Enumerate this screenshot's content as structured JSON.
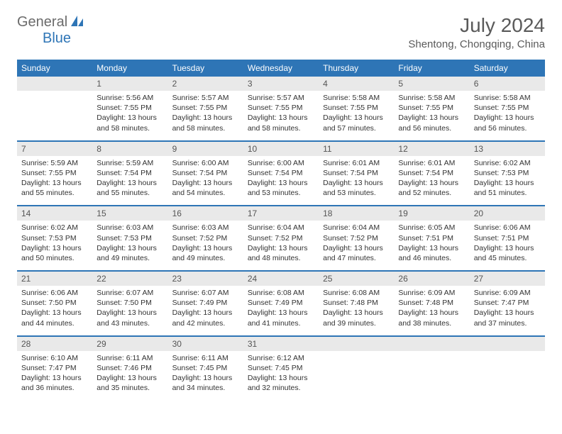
{
  "logo": {
    "part1": "General",
    "part2": "Blue"
  },
  "title": "July 2024",
  "location": "Shentong, Chongqing, China",
  "colors": {
    "header_bg": "#2e75b6",
    "header_text": "#ffffff",
    "daynum_bg": "#e9e9e9",
    "border": "#2e75b6",
    "body_text": "#333333",
    "muted_text": "#5a5a5a"
  },
  "day_headers": [
    "Sunday",
    "Monday",
    "Tuesday",
    "Wednesday",
    "Thursday",
    "Friday",
    "Saturday"
  ],
  "weeks": [
    {
      "nums": [
        "",
        "1",
        "2",
        "3",
        "4",
        "5",
        "6"
      ],
      "cells": [
        "",
        "Sunrise: 5:56 AM\nSunset: 7:55 PM\nDaylight: 13 hours and 58 minutes.",
        "Sunrise: 5:57 AM\nSunset: 7:55 PM\nDaylight: 13 hours and 58 minutes.",
        "Sunrise: 5:57 AM\nSunset: 7:55 PM\nDaylight: 13 hours and 58 minutes.",
        "Sunrise: 5:58 AM\nSunset: 7:55 PM\nDaylight: 13 hours and 57 minutes.",
        "Sunrise: 5:58 AM\nSunset: 7:55 PM\nDaylight: 13 hours and 56 minutes.",
        "Sunrise: 5:58 AM\nSunset: 7:55 PM\nDaylight: 13 hours and 56 minutes."
      ]
    },
    {
      "nums": [
        "7",
        "8",
        "9",
        "10",
        "11",
        "12",
        "13"
      ],
      "cells": [
        "Sunrise: 5:59 AM\nSunset: 7:55 PM\nDaylight: 13 hours and 55 minutes.",
        "Sunrise: 5:59 AM\nSunset: 7:54 PM\nDaylight: 13 hours and 55 minutes.",
        "Sunrise: 6:00 AM\nSunset: 7:54 PM\nDaylight: 13 hours and 54 minutes.",
        "Sunrise: 6:00 AM\nSunset: 7:54 PM\nDaylight: 13 hours and 53 minutes.",
        "Sunrise: 6:01 AM\nSunset: 7:54 PM\nDaylight: 13 hours and 53 minutes.",
        "Sunrise: 6:01 AM\nSunset: 7:54 PM\nDaylight: 13 hours and 52 minutes.",
        "Sunrise: 6:02 AM\nSunset: 7:53 PM\nDaylight: 13 hours and 51 minutes."
      ]
    },
    {
      "nums": [
        "14",
        "15",
        "16",
        "17",
        "18",
        "19",
        "20"
      ],
      "cells": [
        "Sunrise: 6:02 AM\nSunset: 7:53 PM\nDaylight: 13 hours and 50 minutes.",
        "Sunrise: 6:03 AM\nSunset: 7:53 PM\nDaylight: 13 hours and 49 minutes.",
        "Sunrise: 6:03 AM\nSunset: 7:52 PM\nDaylight: 13 hours and 49 minutes.",
        "Sunrise: 6:04 AM\nSunset: 7:52 PM\nDaylight: 13 hours and 48 minutes.",
        "Sunrise: 6:04 AM\nSunset: 7:52 PM\nDaylight: 13 hours and 47 minutes.",
        "Sunrise: 6:05 AM\nSunset: 7:51 PM\nDaylight: 13 hours and 46 minutes.",
        "Sunrise: 6:06 AM\nSunset: 7:51 PM\nDaylight: 13 hours and 45 minutes."
      ]
    },
    {
      "nums": [
        "21",
        "22",
        "23",
        "24",
        "25",
        "26",
        "27"
      ],
      "cells": [
        "Sunrise: 6:06 AM\nSunset: 7:50 PM\nDaylight: 13 hours and 44 minutes.",
        "Sunrise: 6:07 AM\nSunset: 7:50 PM\nDaylight: 13 hours and 43 minutes.",
        "Sunrise: 6:07 AM\nSunset: 7:49 PM\nDaylight: 13 hours and 42 minutes.",
        "Sunrise: 6:08 AM\nSunset: 7:49 PM\nDaylight: 13 hours and 41 minutes.",
        "Sunrise: 6:08 AM\nSunset: 7:48 PM\nDaylight: 13 hours and 39 minutes.",
        "Sunrise: 6:09 AM\nSunset: 7:48 PM\nDaylight: 13 hours and 38 minutes.",
        "Sunrise: 6:09 AM\nSunset: 7:47 PM\nDaylight: 13 hours and 37 minutes."
      ]
    },
    {
      "nums": [
        "28",
        "29",
        "30",
        "31",
        "",
        "",
        ""
      ],
      "cells": [
        "Sunrise: 6:10 AM\nSunset: 7:47 PM\nDaylight: 13 hours and 36 minutes.",
        "Sunrise: 6:11 AM\nSunset: 7:46 PM\nDaylight: 13 hours and 35 minutes.",
        "Sunrise: 6:11 AM\nSunset: 7:45 PM\nDaylight: 13 hours and 34 minutes.",
        "Sunrise: 6:12 AM\nSunset: 7:45 PM\nDaylight: 13 hours and 32 minutes.",
        "",
        "",
        ""
      ]
    }
  ]
}
